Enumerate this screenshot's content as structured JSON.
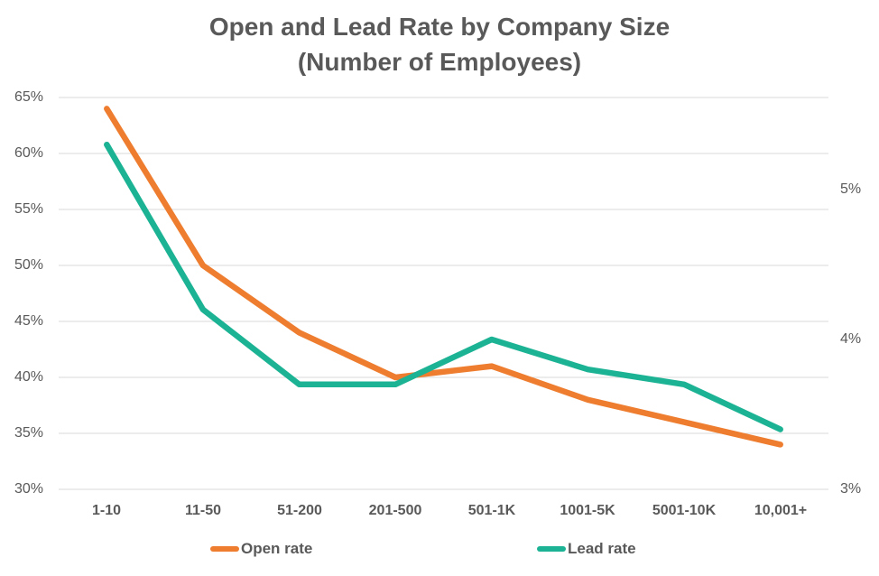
{
  "title": {
    "line1": "Open and Lead Rate by Company Size",
    "line2": "(Number of Employees)"
  },
  "chart_data": {
    "type": "line",
    "categories": [
      "1-10",
      "11-50",
      "51-200",
      "201-500",
      "501-1K",
      "1001-5K",
      "5001-10K",
      "10,001+"
    ],
    "series": [
      {
        "name": "Open rate",
        "axis": "left",
        "color": "#EE7D2F",
        "unit": "%",
        "values": [
          64,
          50,
          44,
          40,
          41,
          38,
          36,
          34
        ]
      },
      {
        "name": "Lead rate",
        "axis": "right",
        "color": "#1CB394",
        "unit": "%",
        "values": [
          5.3,
          4.2,
          3.7,
          3.7,
          4.0,
          3.8,
          3.7,
          3.4
        ]
      }
    ],
    "left_axis": {
      "min": 30,
      "max": 65,
      "tick_values": [
        65,
        60,
        55,
        50,
        45,
        40,
        35,
        30
      ],
      "tick_labels": [
        "65%",
        "60%",
        "55%",
        "50%",
        "45%",
        "40%",
        "35%",
        "30%"
      ]
    },
    "right_axis": {
      "min": 3,
      "tick_values": [
        5,
        4,
        3
      ],
      "tick_labels": [
        "5%",
        "4%",
        "3%"
      ]
    },
    "grid": true,
    "legend_position": "bottom",
    "gridline_color": "#D9D9D9",
    "text_color": "#595959",
    "background_color": "#FFFFFF"
  }
}
